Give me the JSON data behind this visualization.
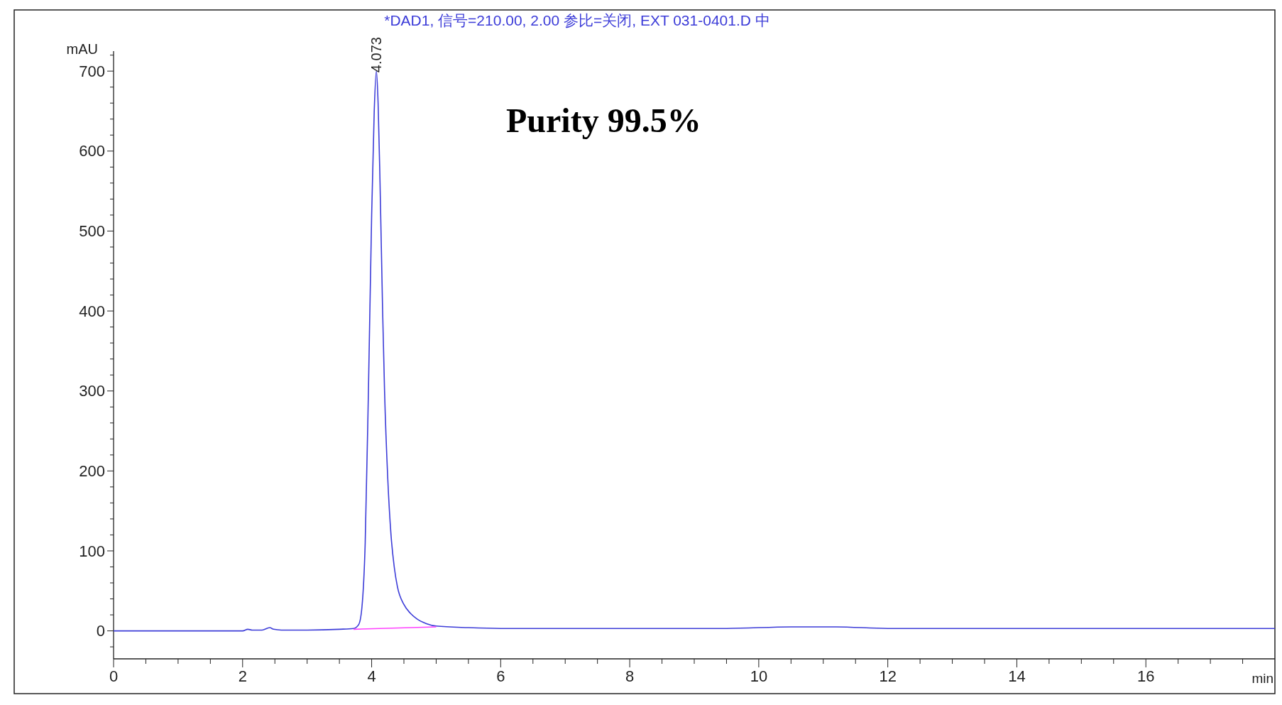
{
  "chart_data": {
    "type": "line",
    "title": "*DAD1, 信号=210.00, 2.00 参比=关闭, EXT 031-0401.D 中",
    "xlabel": "min",
    "ylabel": "mAU",
    "xlim": [
      0,
      18
    ],
    "ylim": [
      -35,
      725
    ],
    "xticks": [
      0,
      {
        "value": 0.5,
        "label": null
      },
      {
        "value": 1,
        "label": null
      },
      {
        "value": 1.5,
        "label": null
      },
      2,
      {
        "value": 2.5,
        "label": null
      },
      {
        "value": 3,
        "label": null
      },
      {
        "value": 3.5,
        "label": null
      },
      4,
      {
        "value": 4.5,
        "label": null
      },
      {
        "value": 5,
        "label": null
      },
      {
        "value": 5.5,
        "label": null
      },
      6,
      {
        "value": 6.5,
        "label": null
      },
      {
        "value": 7,
        "label": null
      },
      {
        "value": 7.5,
        "label": null
      },
      8,
      {
        "value": 8.5,
        "label": null
      },
      {
        "value": 9,
        "label": null
      },
      {
        "value": 9.5,
        "label": null
      },
      10,
      {
        "value": 10.5,
        "label": null
      },
      {
        "value": 11,
        "label": null
      },
      {
        "value": 11.5,
        "label": null
      },
      12,
      {
        "value": 12.5,
        "label": null
      },
      {
        "value": 13,
        "label": null
      },
      {
        "value": 13.5,
        "label": null
      },
      14,
      {
        "value": 14.5,
        "label": null
      },
      {
        "value": 15,
        "label": null
      },
      {
        "value": 15.5,
        "label": null
      },
      16,
      {
        "value": 16.5,
        "label": null
      },
      {
        "value": 17,
        "label": null
      },
      {
        "value": 17.5,
        "label": null
      }
    ],
    "yticks": [
      {
        "value": -20,
        "label": null
      },
      0,
      {
        "value": 20,
        "label": null
      },
      {
        "value": 40,
        "label": null
      },
      {
        "value": 60,
        "label": null
      },
      {
        "value": 80,
        "label": null
      },
      100,
      {
        "value": 120,
        "label": null
      },
      {
        "value": 140,
        "label": null
      },
      {
        "value": 160,
        "label": null
      },
      {
        "value": 180,
        "label": null
      },
      200,
      {
        "value": 220,
        "label": null
      },
      {
        "value": 240,
        "label": null
      },
      {
        "value": 260,
        "label": null
      },
      {
        "value": 280,
        "label": null
      },
      300,
      {
        "value": 320,
        "label": null
      },
      {
        "value": 340,
        "label": null
      },
      {
        "value": 360,
        "label": null
      },
      {
        "value": 380,
        "label": null
      },
      400,
      {
        "value": 420,
        "label": null
      },
      {
        "value": 440,
        "label": null
      },
      {
        "value": 460,
        "label": null
      },
      {
        "value": 480,
        "label": null
      },
      500,
      {
        "value": 520,
        "label": null
      },
      {
        "value": 540,
        "label": null
      },
      {
        "value": 560,
        "label": null
      },
      {
        "value": 580,
        "label": null
      },
      600,
      {
        "value": 620,
        "label": null
      },
      {
        "value": 640,
        "label": null
      },
      {
        "value": 660,
        "label": null
      },
      {
        "value": 680,
        "label": null
      },
      700,
      {
        "value": 720,
        "label": null
      }
    ],
    "grid": false,
    "marker": "none",
    "line_style": "solid",
    "series": [
      {
        "color": "#3c3cd8",
        "x": [
          0,
          1,
          2,
          2.08,
          2.15,
          2.3,
          2.42,
          2.48,
          2.6,
          3,
          3.5,
          3.72,
          3.8,
          3.85,
          3.9,
          3.95,
          4.0,
          4.04,
          4.073,
          4.1,
          4.13,
          4.17,
          4.2,
          4.25,
          4.3,
          4.35,
          4.4,
          4.5,
          4.6,
          4.7,
          4.85,
          5,
          5.5,
          6,
          8,
          9.5,
          10.5,
          11.2,
          12,
          14,
          16,
          18
        ],
        "values": [
          0,
          0,
          0,
          2,
          1,
          1,
          4,
          2,
          1,
          1,
          2,
          3,
          8,
          30,
          110,
          300,
          520,
          650,
          700,
          660,
          560,
          400,
          300,
          190,
          120,
          80,
          55,
          33,
          22,
          15,
          9,
          6,
          4,
          3,
          3,
          3,
          5,
          5,
          3,
          3,
          3,
          3
        ]
      },
      {
        "color": "#ff40ff",
        "x": [
          3.72,
          5
        ],
        "values": [
          2,
          5
        ]
      }
    ],
    "annotations": [
      {
        "text": "4.073",
        "x": 4.073,
        "y": 700
      },
      "Purity 99.5%"
    ]
  }
}
